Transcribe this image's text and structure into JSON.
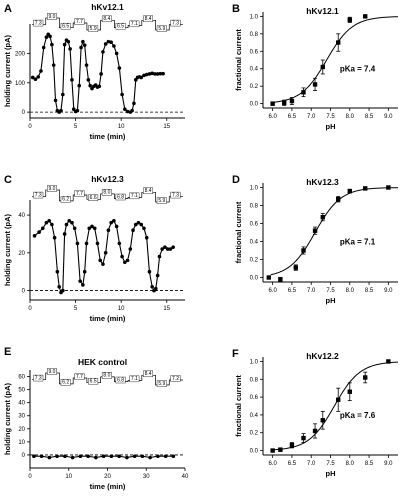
{
  "chart_data": [
    {
      "panel": "A",
      "type": "line",
      "title": "hKv12.1",
      "xlabel": "time (min)",
      "ylabel": "holding current (pA)",
      "xlim": [
        0,
        17
      ],
      "ylim": [
        -20,
        300
      ],
      "xticks": [
        0,
        5,
        10,
        15
      ],
      "yticks": [
        0,
        100,
        200
      ],
      "ph_protocol": [
        "7.3",
        "9.0",
        "6.5",
        "7.7",
        "5.9",
        "8.4",
        "6.5",
        "7.1",
        "8.4",
        "5.9",
        "7.3"
      ],
      "x": [
        0.3,
        0.6,
        0.9,
        1.2,
        1.5,
        1.8,
        2.0,
        2.2,
        2.4,
        2.6,
        2.8,
        3.0,
        3.2,
        3.4,
        3.6,
        3.8,
        4.0,
        4.2,
        4.4,
        4.6,
        4.8,
        5.0,
        5.2,
        5.4,
        5.6,
        5.8,
        6.0,
        6.2,
        6.4,
        6.6,
        6.8,
        7.0,
        7.2,
        7.4,
        7.6,
        7.8,
        8.0,
        8.3,
        8.6,
        8.9,
        9.2,
        9.5,
        9.8,
        10.1,
        10.4,
        10.7,
        11.0,
        11.2,
        11.4,
        11.6,
        11.8,
        12.0,
        12.2,
        12.5,
        12.8,
        13.1,
        13.4,
        13.7,
        14.0,
        14.3,
        14.6
      ],
      "y": [
        118,
        112,
        120,
        140,
        220,
        255,
        265,
        258,
        230,
        160,
        40,
        5,
        0,
        5,
        60,
        230,
        245,
        240,
        215,
        110,
        10,
        2,
        5,
        90,
        220,
        240,
        228,
        160,
        110,
        90,
        80,
        88,
        92,
        85,
        88,
        130,
        205,
        232,
        240,
        238,
        225,
        200,
        150,
        60,
        10,
        2,
        0,
        5,
        30,
        110,
        118,
        120,
        118,
        125,
        128,
        130,
        132,
        130,
        130,
        131,
        131
      ]
    },
    {
      "panel": "B",
      "type": "scatter",
      "title": "hKv12.1",
      "xlabel": "pH",
      "ylabel": "fractional current",
      "xlim": [
        5.75,
        9.25
      ],
      "ylim": [
        -0.05,
        1.05
      ],
      "xticks": [
        6.0,
        6.5,
        7.0,
        7.5,
        8.0,
        8.5,
        9.0
      ],
      "yticks": [
        0.0,
        0.2,
        0.4,
        0.6,
        0.8,
        1.0
      ],
      "x": [
        6.0,
        6.3,
        6.5,
        6.8,
        7.1,
        7.3,
        7.7,
        8.0,
        8.4
      ],
      "y": [
        0.0,
        0.01,
        0.03,
        0.13,
        0.22,
        0.42,
        0.7,
        0.96,
        1.0
      ],
      "err": [
        0.02,
        0.03,
        0.04,
        0.05,
        0.07,
        0.08,
        0.1,
        0.03,
        0.0
      ],
      "fit_pka": 7.4,
      "annotation": "pKa = 7.4"
    },
    {
      "panel": "C",
      "type": "line",
      "title": "hKv12.3",
      "xlabel": "time (min)",
      "ylabel": "holding current (pA)",
      "xlim": [
        0,
        17
      ],
      "ylim": [
        -5,
        48
      ],
      "xticks": [
        0,
        5,
        10,
        15
      ],
      "yticks": [
        0,
        20,
        40
      ],
      "ph_protocol": [
        "7.3",
        "9.0",
        "6.2",
        "7.7",
        "6.6",
        "8.0",
        "6.8",
        "7.1",
        "8.4",
        "5.9",
        "7.3"
      ],
      "x": [
        0.5,
        1.0,
        1.4,
        1.8,
        2.1,
        2.4,
        2.7,
        3.0,
        3.2,
        3.4,
        3.6,
        3.8,
        4.0,
        4.3,
        4.6,
        4.9,
        5.2,
        5.5,
        5.8,
        6.0,
        6.2,
        6.5,
        6.8,
        7.1,
        7.4,
        7.7,
        8.0,
        8.3,
        8.6,
        8.9,
        9.2,
        9.5,
        9.8,
        10.1,
        10.4,
        10.7,
        11.0,
        11.3,
        11.6,
        11.9,
        12.2,
        12.5,
        12.8,
        13.1,
        13.4,
        13.6,
        13.8,
        14.0,
        14.2,
        14.5,
        14.8,
        15.1,
        15.4,
        15.7
      ],
      "y": [
        29,
        31,
        33,
        36,
        37,
        35,
        28,
        10,
        2,
        -1,
        0,
        30,
        35,
        37,
        36,
        33,
        25,
        5,
        3,
        10,
        25,
        33,
        34,
        33,
        25,
        16,
        14,
        20,
        32,
        36,
        37,
        34,
        25,
        18,
        15,
        16,
        22,
        32,
        35,
        36,
        35,
        33,
        28,
        10,
        2,
        0,
        1,
        8,
        18,
        22,
        23,
        22,
        22,
        23
      ]
    },
    {
      "panel": "D",
      "type": "scatter",
      "title": "hKv12.3",
      "xlabel": "pH",
      "ylabel": "fractional current",
      "xlim": [
        5.75,
        9.25
      ],
      "ylim": [
        -0.05,
        1.05
      ],
      "xticks": [
        6.0,
        6.5,
        7.0,
        7.5,
        8.0,
        8.5,
        9.0
      ],
      "yticks": [
        0.0,
        0.2,
        0.4,
        0.6,
        0.8,
        1.0
      ],
      "x": [
        5.9,
        6.2,
        6.6,
        6.8,
        7.1,
        7.3,
        7.7,
        8.0,
        8.4,
        9.0
      ],
      "y": [
        0.0,
        -0.02,
        0.11,
        0.3,
        0.52,
        0.67,
        0.87,
        0.96,
        0.99,
        1.0
      ],
      "err": [
        0.01,
        0.02,
        0.03,
        0.04,
        0.04,
        0.04,
        0.03,
        0.02,
        0.01,
        0.0
      ],
      "fit_pka": 7.1,
      "annotation": "pKa = 7.1"
    },
    {
      "panel": "E",
      "type": "line",
      "title": "HEK control",
      "xlabel": "time (min)",
      "ylabel": "holding current (pA)",
      "xlim": [
        0,
        40
      ],
      "ylim": [
        -10,
        65
      ],
      "xticks": [
        0,
        10,
        20,
        30,
        40
      ],
      "yticks": [
        0,
        10,
        20,
        30,
        40,
        50,
        60
      ],
      "ph_protocol": [
        "7.3",
        "9.0",
        "6.2",
        "7.7",
        "6.5",
        "8.0",
        "6.8",
        "7.1",
        "8.4",
        "5.9",
        "7.2"
      ],
      "x": [
        1,
        3,
        5,
        7,
        9,
        11,
        13,
        15,
        17,
        19,
        21,
        23,
        25,
        27,
        29,
        31,
        33,
        35,
        37
      ],
      "y": [
        -1,
        -1,
        -2,
        -1,
        -1,
        -2,
        -1,
        -1,
        -2,
        -1,
        -1,
        -1,
        -2,
        -1,
        -1,
        -2,
        -1,
        -1,
        -1
      ]
    },
    {
      "panel": "F",
      "type": "scatter",
      "title": "hKv12.2",
      "xlabel": "pH",
      "ylabel": "fractional current",
      "xlim": [
        5.75,
        9.25
      ],
      "ylim": [
        -0.05,
        1.05
      ],
      "xticks": [
        6.0,
        6.5,
        7.0,
        7.5,
        8.0,
        8.5,
        9.0
      ],
      "yticks": [
        0.0,
        0.2,
        0.4,
        0.6,
        0.8,
        1.0
      ],
      "x": [
        6.0,
        6.2,
        6.5,
        6.8,
        7.1,
        7.3,
        7.7,
        8.0,
        8.4,
        9.0
      ],
      "y": [
        0.0,
        0.01,
        0.06,
        0.14,
        0.22,
        0.34,
        0.57,
        0.66,
        0.82,
        1.0
      ],
      "err": [
        0.01,
        0.02,
        0.03,
        0.05,
        0.08,
        0.1,
        0.13,
        0.1,
        0.06,
        0.0
      ],
      "fit_pka": 7.6,
      "annotation": "pKa = 7.6"
    }
  ]
}
